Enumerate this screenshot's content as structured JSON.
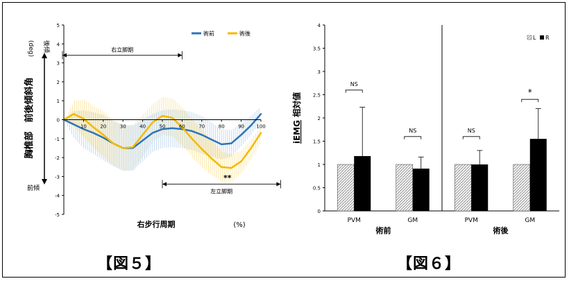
{
  "figure5": {
    "caption": "【図５】",
    "y_label_main": "胸椎部　前後傾斜角",
    "y_unit": "(deg)",
    "top_label": "後傾",
    "bottom_label": "前傾",
    "x_label": "右步行周期",
    "x_unit": "(%)",
    "right_stance_label": "右立脚期",
    "left_stance_label": "左立脚期",
    "significance_label": "**"
  },
  "figure6": {
    "caption": "【図６】",
    "y_label_prefix": "iEMG",
    "y_label_suffix": " 相対値",
    "group_labels": [
      "術前",
      "術後"
    ],
    "legend_L": "L",
    "legend_R": "R"
  },
  "colors": {
    "pre": "#2e75b6",
    "post": "#f5b800",
    "pre_band": "#bdd7ee",
    "post_band": "#fbe5a0",
    "bar_R": "#000000"
  },
  "chart_data": [
    {
      "type": "line",
      "x": [
        0,
        5,
        10,
        15,
        20,
        25,
        30,
        35,
        40,
        45,
        50,
        55,
        60,
        65,
        70,
        75,
        80,
        85,
        90,
        95,
        100
      ],
      "series": [
        {
          "name": "術前",
          "values": [
            0,
            -0.25,
            -0.5,
            -0.7,
            -0.95,
            -1.25,
            -1.5,
            -1.5,
            -1.1,
            -0.7,
            -0.5,
            -0.45,
            -0.5,
            -0.6,
            -0.8,
            -1.05,
            -1.3,
            -1.25,
            -0.8,
            -0.3,
            0.3
          ]
        },
        {
          "name": "術後",
          "values": [
            0,
            0.3,
            0.05,
            -0.4,
            -0.8,
            -1.25,
            -1.5,
            -1.45,
            -0.8,
            -0.15,
            0.2,
            0.1,
            -0.4,
            -1.0,
            -1.55,
            -2.05,
            -2.5,
            -2.55,
            -2.2,
            -1.5,
            -0.7
          ]
        }
      ],
      "band_halfwidth": [
        0,
        0.7,
        1.0,
        1.1,
        1.2,
        1.2,
        1.2,
        1.2,
        1.1,
        1.0,
        1.0,
        1.0,
        1.0,
        1.0,
        1.0,
        0.9,
        0.8,
        0.7,
        0.6,
        0.5,
        0.4
      ],
      "xlim": [
        0,
        100
      ],
      "ylim": [
        -5,
        5
      ],
      "xticks": [
        10,
        20,
        30,
        40,
        50,
        60,
        70,
        80,
        90,
        100
      ],
      "yticks": [
        -5,
        -4,
        -3,
        -2,
        -1,
        0,
        1,
        2,
        3,
        4,
        5
      ],
      "annotations": [
        {
          "text": "右立脚期",
          "x_start": 0,
          "x_end": 60,
          "y": 3.4
        },
        {
          "text": "左立脚期",
          "x_start": 50,
          "x_end": 110,
          "y": -3.4
        },
        {
          "text": "**",
          "x": 83,
          "y": -3.2
        }
      ]
    },
    {
      "type": "bar",
      "categories": [
        "PVM",
        "GM",
        "PVM",
        "GM"
      ],
      "groups": [
        "術前",
        "術前",
        "術後",
        "術後"
      ],
      "series": [
        {
          "name": "L",
          "values": [
            1.0,
            1.0,
            1.0,
            1.0
          ]
        },
        {
          "name": "R",
          "values": [
            1.18,
            0.91,
            1.0,
            1.55
          ]
        }
      ],
      "error_bars_R": [
        1.05,
        0.25,
        0.3,
        0.65
      ],
      "significance": [
        "NS",
        "NS",
        "NS",
        "*"
      ],
      "ylim": [
        0,
        4
      ],
      "yticks": [
        0,
        0.5,
        1,
        1.5,
        2,
        2.5,
        3,
        3.5,
        4
      ],
      "ytick_labels": [
        "0",
        "0.5",
        "1",
        "1.5",
        "2",
        "2.5",
        "3",
        "3.5",
        "4"
      ],
      "legend_position": "top-right"
    }
  ]
}
